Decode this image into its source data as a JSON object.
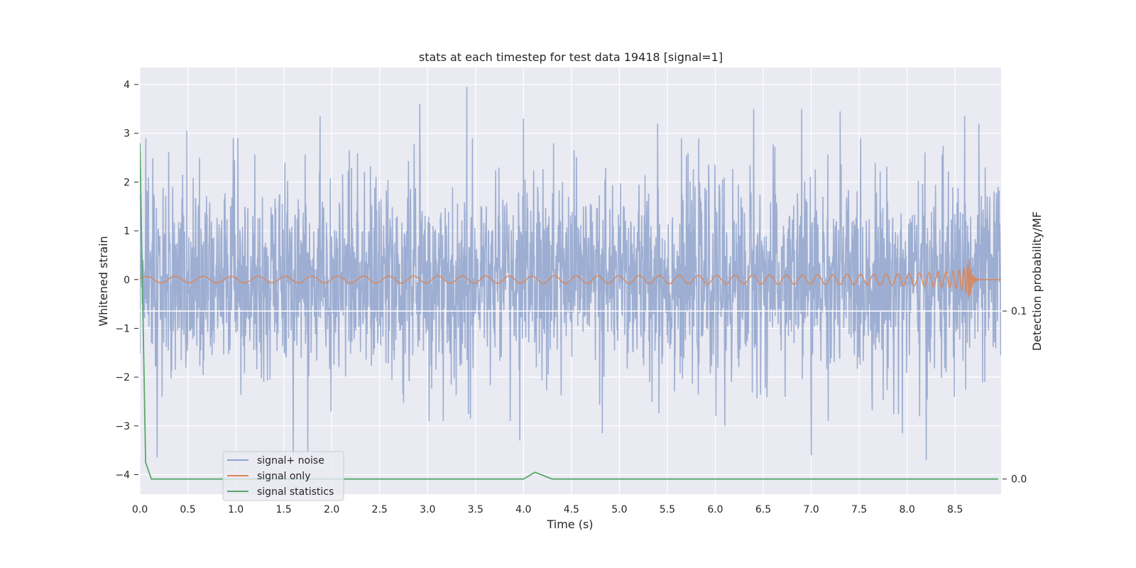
{
  "chart_data": {
    "type": "line",
    "title": "stats at each timestep for test data 19418 [signal=1]",
    "xlabel": "Time (s)",
    "ylabel": "Whitened strain",
    "y2label": "Detection probability/MF",
    "xlim": [
      0.0,
      8.98
    ],
    "ylim": [
      -4.4,
      4.35
    ],
    "y2lim": [
      -0.009,
      0.245
    ],
    "xticks": [
      "0.0",
      "0.5",
      "1.0",
      "1.5",
      "2.0",
      "2.5",
      "3.0",
      "3.5",
      "4.0",
      "4.5",
      "5.0",
      "5.5",
      "6.0",
      "6.5",
      "7.0",
      "7.5",
      "8.0",
      "8.5"
    ],
    "yticks": [
      "4",
      "3",
      "2",
      "1",
      "0",
      "−1",
      "−2",
      "−3",
      "−4"
    ],
    "y2ticks": [
      "0.1",
      "0.0"
    ],
    "grid": true,
    "legend_position": "lower-left",
    "background": "#eaeaf2",
    "series": [
      {
        "name": "signal+ noise",
        "color": "#8fa3cc",
        "kind": "noise",
        "sigma": 1.0,
        "spikes": [
          [
            0.49,
            3.05
          ],
          [
            1.88,
            3.35
          ],
          [
            2.92,
            3.6
          ],
          [
            3.41,
            3.95
          ],
          [
            4.0,
            3.3
          ],
          [
            5.4,
            3.2
          ],
          [
            6.4,
            3.5
          ],
          [
            6.9,
            3.5
          ],
          [
            7.3,
            3.45
          ],
          [
            8.6,
            3.35
          ],
          [
            8.75,
            3.2
          ],
          [
            0.18,
            -3.65
          ],
          [
            1.6,
            -3.6
          ],
          [
            1.75,
            -3.55
          ],
          [
            3.96,
            -3.3
          ],
          [
            4.82,
            -3.15
          ],
          [
            6.1,
            -3.0
          ],
          [
            7.0,
            -3.6
          ],
          [
            7.95,
            -3.15
          ],
          [
            8.2,
            -3.7
          ]
        ]
      },
      {
        "name": "signal only",
        "color": "#dd8452",
        "kind": "chirp",
        "merger_t": 8.65,
        "peak_amp": 0.45
      },
      {
        "name": "signal statistics",
        "color": "#55a868",
        "axis": "y2",
        "points": [
          [
            0.0,
            0.2
          ],
          [
            0.06,
            0.01
          ],
          [
            0.12,
            0.0
          ],
          [
            4.0,
            0.0
          ],
          [
            4.12,
            0.004
          ],
          [
            4.3,
            0.0
          ],
          [
            8.95,
            0.0
          ]
        ]
      }
    ],
    "hline_y2": 0.1
  }
}
